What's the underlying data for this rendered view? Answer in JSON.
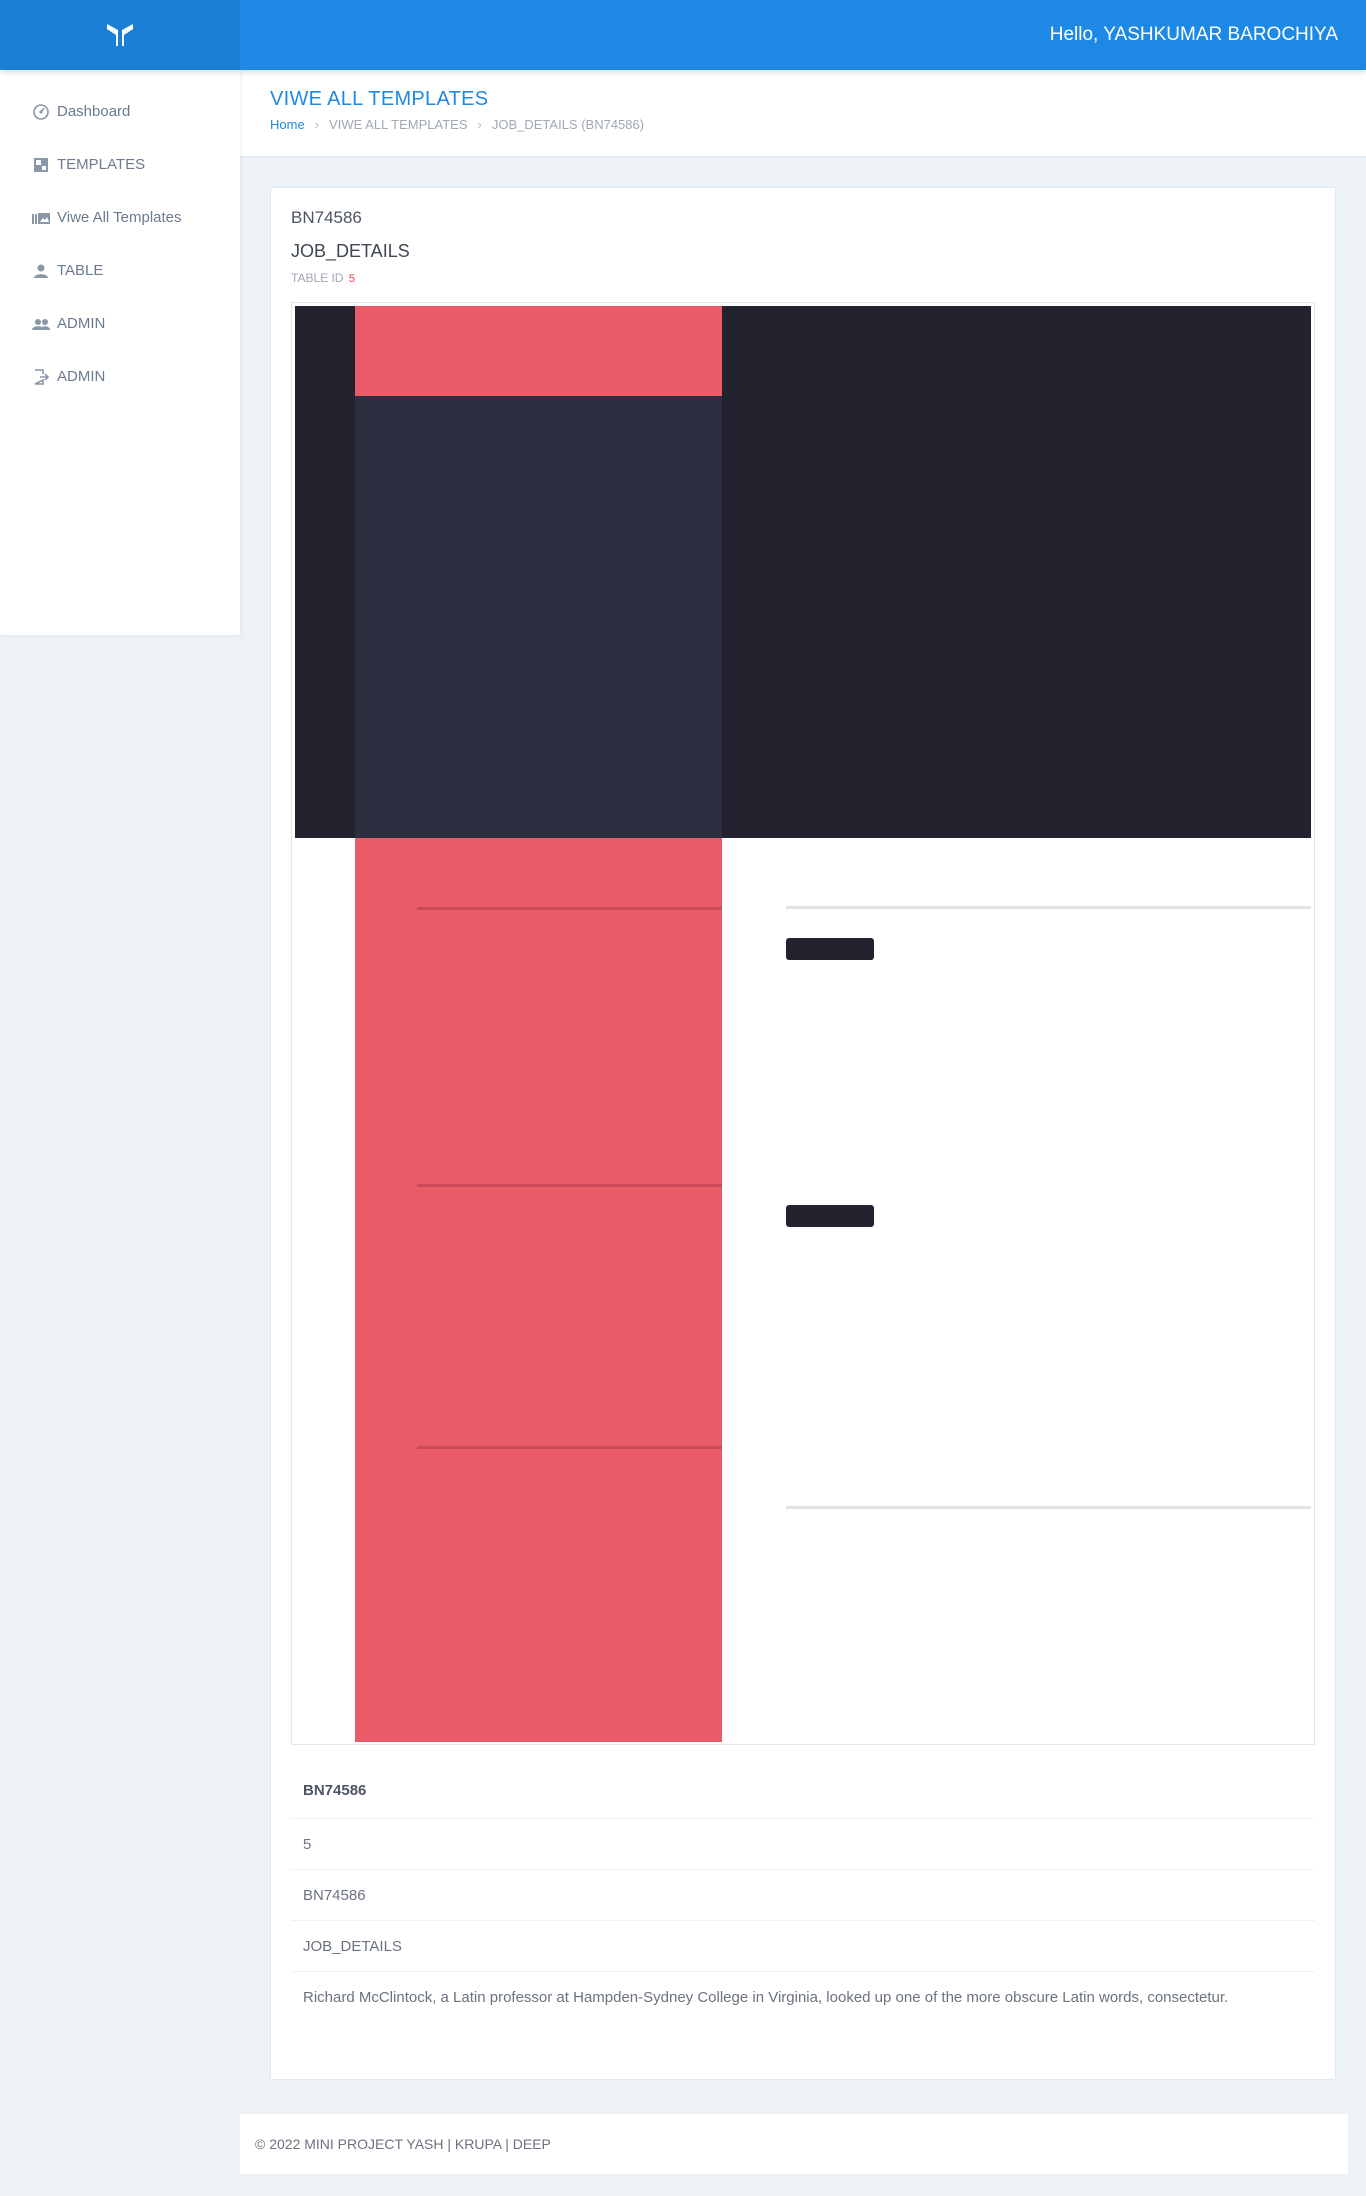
{
  "header": {
    "greeting": "Hello, YASHKUMAR BAROCHIYA",
    "logo_icon": "y-logo-icon",
    "bar_color": "#1e88e5"
  },
  "sidebar": {
    "items": [
      {
        "label": "Dashboard",
        "icon": "dashboard-icon"
      },
      {
        "label": "TEMPLATES",
        "icon": "templates-icon"
      },
      {
        "label": "Viwe All Templates",
        "icon": "library-icon"
      },
      {
        "label": "TABLE",
        "icon": "person-icon"
      },
      {
        "label": "ADMIN",
        "icon": "group-icon"
      },
      {
        "label": "ADMIN",
        "icon": "logout-icon"
      }
    ]
  },
  "page": {
    "title": "VIWE ALL TEMPLATES",
    "breadcrumb": {
      "home": "Home",
      "section": "VIWE ALL TEMPLATES",
      "current": "JOB_DETAILS (BN74586)"
    }
  },
  "template": {
    "code": "BN74586",
    "name": "JOB_DETAILS",
    "table_id_label": "TABLE ID",
    "table_id": "5",
    "preview_colors": {
      "dark": "#23222f",
      "panel": "#2d2f40",
      "accent": "#ea5b68"
    }
  },
  "details": {
    "heading": "BN74586",
    "rows": [
      "5",
      "BN74586",
      "JOB_DETAILS",
      "Richard McClintock, a Latin professor at Hampden-Sydney College in Virginia, looked up one of the more obscure Latin words, consectetur."
    ]
  },
  "footer": {
    "text": "© 2022 MINI PROJECT YASH | KRUPA | DEEP"
  }
}
